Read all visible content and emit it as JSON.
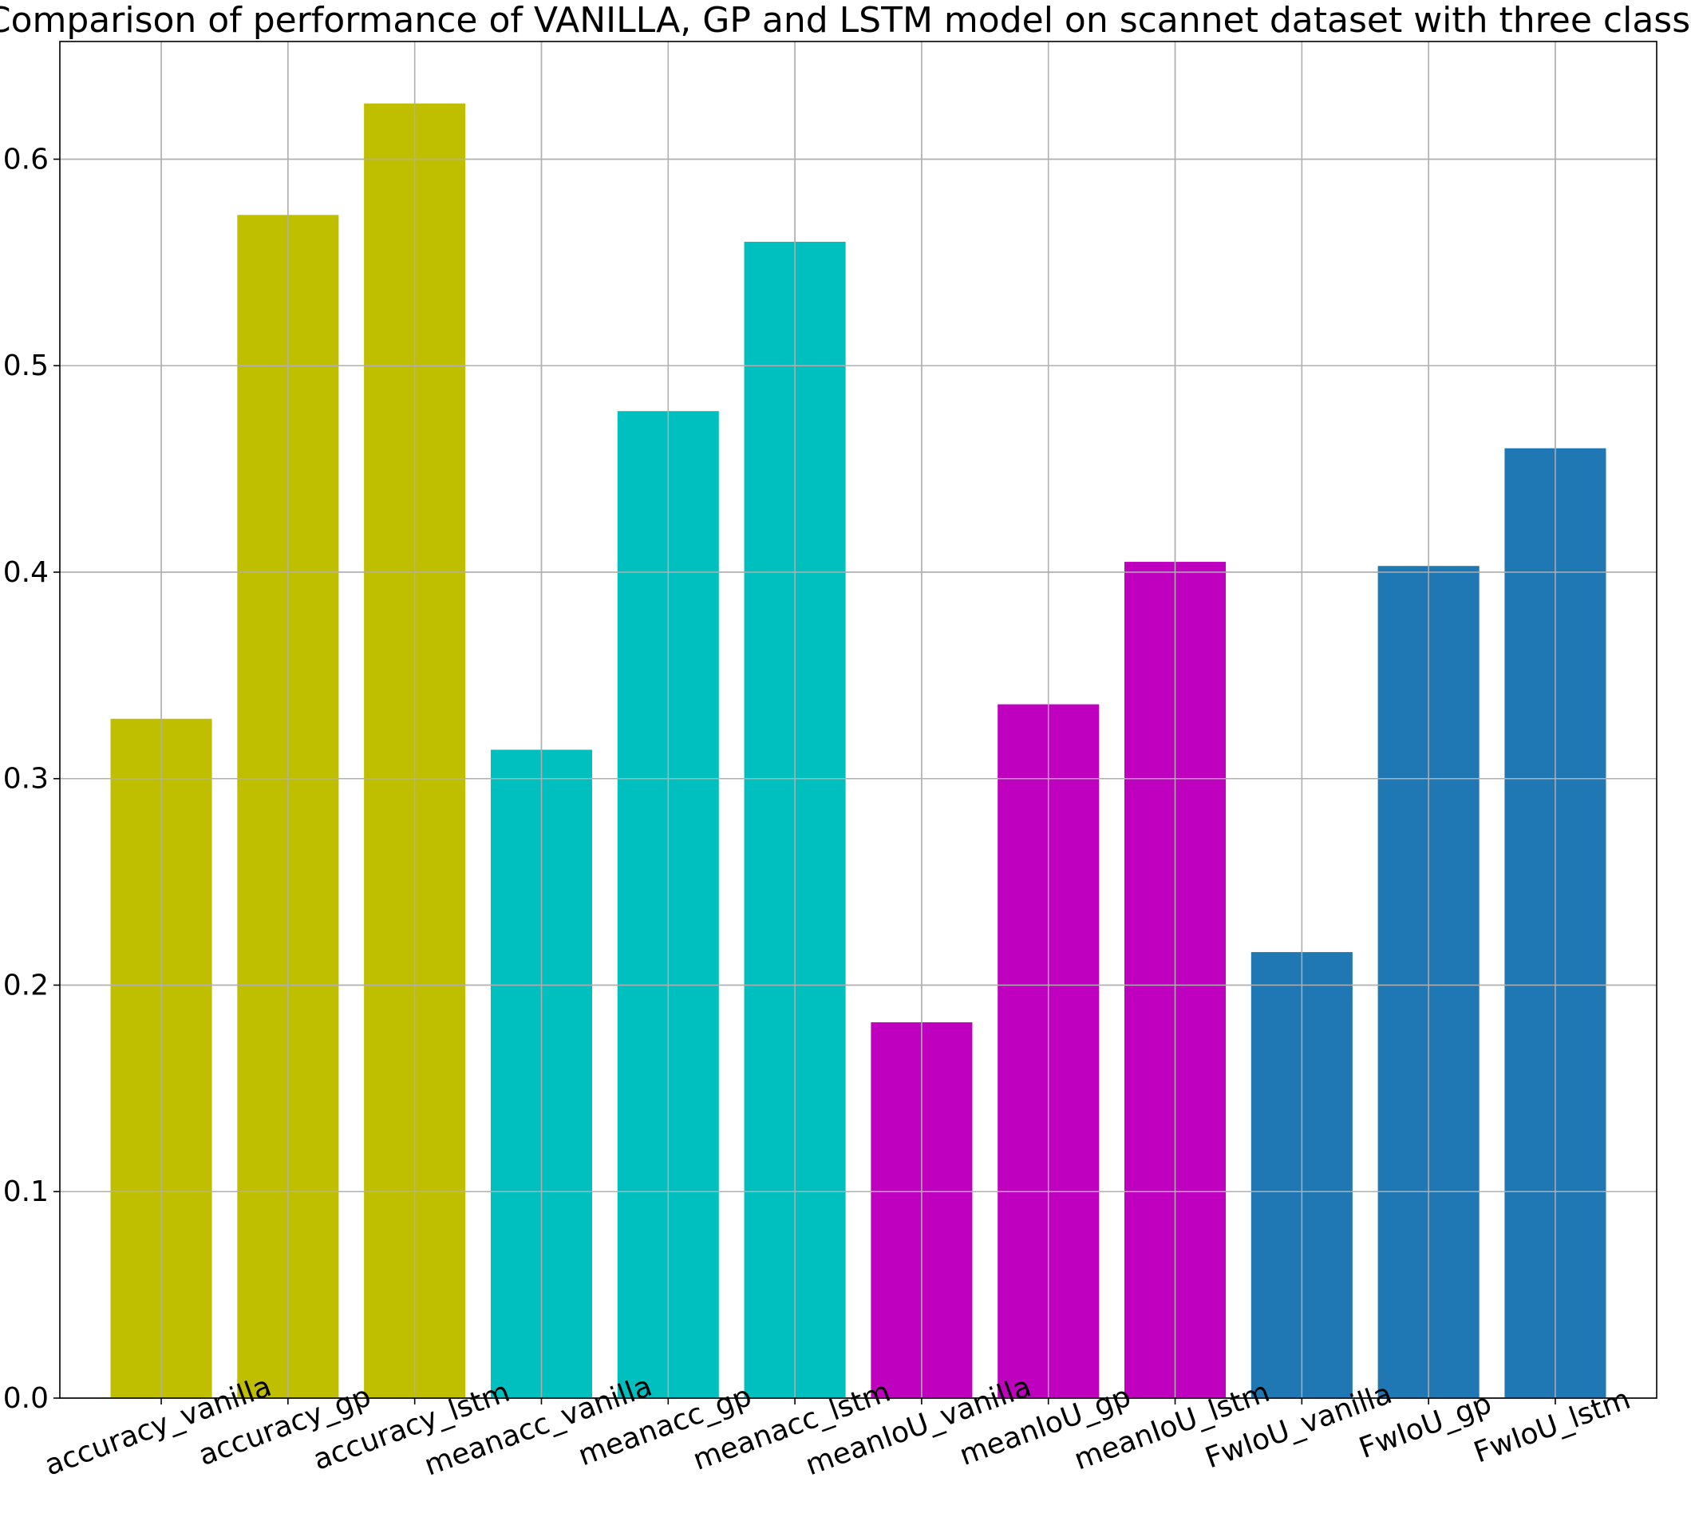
{
  "chart_data": {
    "type": "bar",
    "title": "Comparison of performance of VANILLA, GP and LSTM model on scannet dataset with three classes",
    "xlabel": "",
    "ylabel": "",
    "categories": [
      "accuracy_vanilla",
      "accuracy_gp",
      "accuracy_lstm",
      "meanacc_vanilla",
      "meanacc_gp",
      "meanacc_lstm",
      "meanIoU_vanilla",
      "meanIoU_gp",
      "meanIoU_lstm",
      "FwIoU_vanilla",
      "FwIoU_gp",
      "FwIoU_lstm"
    ],
    "values": [
      0.329,
      0.573,
      0.627,
      0.314,
      0.478,
      0.56,
      0.182,
      0.336,
      0.405,
      0.216,
      0.403,
      0.46
    ],
    "bar_colors": [
      "#bfbf00",
      "#bfbf00",
      "#bfbf00",
      "#00bfbf",
      "#00bfbf",
      "#00bfbf",
      "#bf00bf",
      "#bf00bf",
      "#bf00bf",
      "#1f77b4",
      "#1f77b4",
      "#1f77b4"
    ],
    "ylim": [
      0,
      0.657
    ],
    "yticks": [
      0.0,
      0.1,
      0.2,
      0.3,
      0.4,
      0.5,
      0.6
    ],
    "ytick_labels": [
      "0.0",
      "0.1",
      "0.2",
      "0.3",
      "0.4",
      "0.5",
      "0.6"
    ],
    "xtick_rotation": "20 degrees",
    "grid": true,
    "legend": "none"
  }
}
